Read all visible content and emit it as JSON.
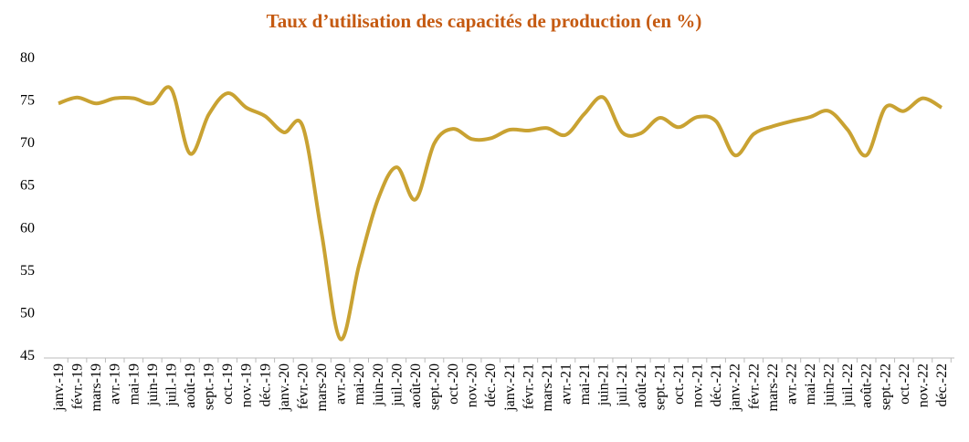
{
  "chart_data": {
    "type": "line",
    "title": "Taux d’utilisation des capacités de production (en %)",
    "categories": [
      "janv.-19",
      "févr.-19",
      "mars-19",
      "avr.-19",
      "mai-19",
      "juin-19",
      "juil.-19",
      "août-19",
      "sept.-19",
      "oct.-19",
      "nov.-19",
      "déc.-19",
      "janv.-20",
      "févr.-20",
      "mars-20",
      "avr.-20",
      "mai-20",
      "juin-20",
      "juil.-20",
      "août-20",
      "sept.-20",
      "oct.-20",
      "nov.-20",
      "déc.-20",
      "janv.-21",
      "févr.-21",
      "mars-21",
      "avr.-21",
      "mai-21",
      "juin-21",
      "juil.-21",
      "août-21",
      "sept.-21",
      "oct.-21",
      "nov.-21",
      "déc.-21",
      "janv.-22",
      "févr.-22",
      "mars-22",
      "avr.-22",
      "mai-22",
      "juin-22",
      "juil.-22",
      "août-22",
      "sept.-22",
      "oct.-22",
      "nov.-22",
      "déc.-22"
    ],
    "series": [
      {
        "color": "#c9a232",
        "values": [
          74.5,
          75.2,
          74.5,
          75.1,
          75.1,
          74.5,
          76.2,
          68.6,
          73.2,
          75.7,
          74.0,
          73.0,
          71.1,
          71.8,
          59.3,
          46.8,
          55.5,
          63.2,
          67.0,
          63.2,
          69.8,
          71.5,
          70.3,
          70.4,
          71.4,
          71.3,
          71.6,
          70.8,
          73.3,
          75.2,
          71.1,
          71.0,
          72.8,
          71.7,
          72.9,
          72.4,
          68.4,
          70.9,
          71.8,
          72.4,
          72.9,
          73.6,
          71.4,
          68.4,
          74.0,
          73.6,
          75.1,
          74.0
        ]
      }
    ],
    "ylim": [
      45,
      80
    ],
    "yticks": [
      45,
      50,
      55,
      60,
      65,
      70,
      75,
      80
    ],
    "grid": false
  }
}
